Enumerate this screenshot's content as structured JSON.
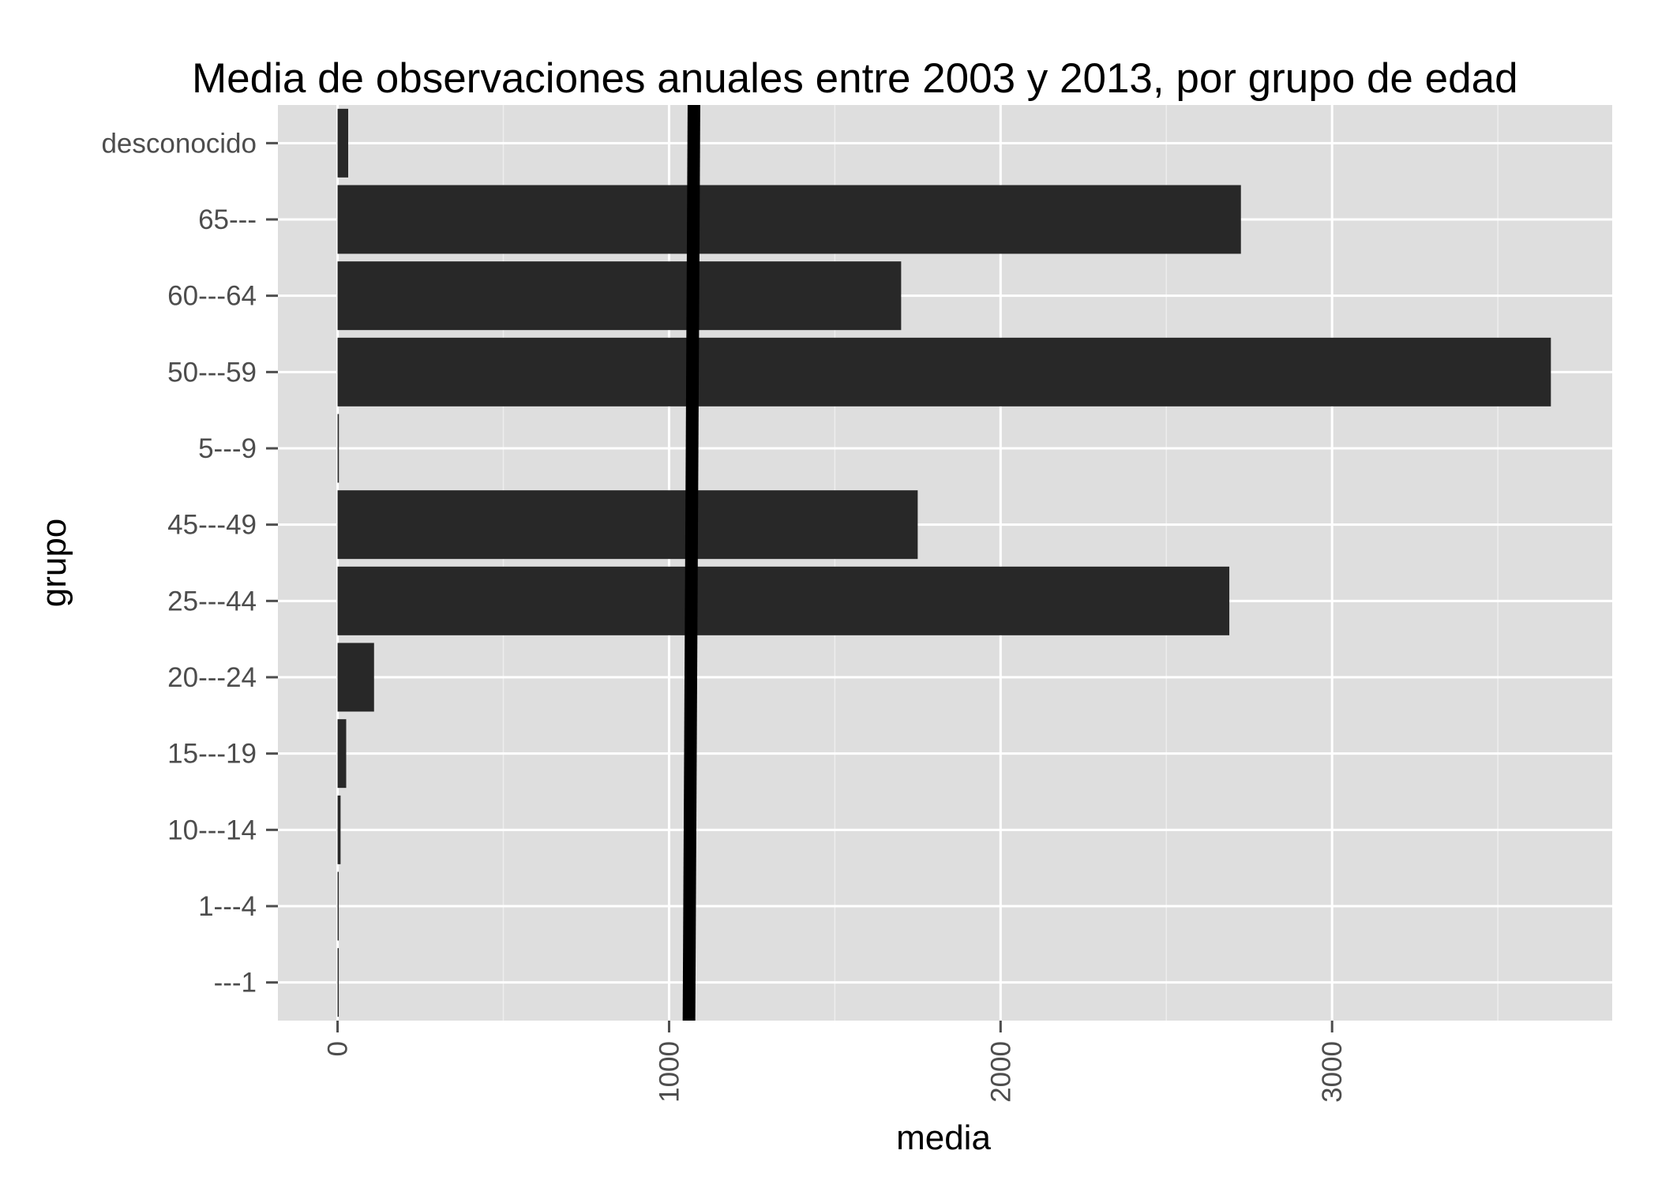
{
  "chart_data": {
    "type": "bar",
    "orientation": "horizontal",
    "title": "Media de observaciones anuales entre 2003 y 2013, por grupo de edad",
    "xlabel": "media",
    "ylabel": "grupo",
    "categories": [
      "---1",
      "1---4",
      "10---14",
      "15---19",
      "20---24",
      "25---44",
      "45---49",
      "5---9",
      "50---59",
      "60---64",
      "65---",
      "desconocido"
    ],
    "values": [
      3,
      3,
      9,
      26,
      110,
      2690,
      1750,
      4,
      3660,
      1700,
      2725,
      32
    ],
    "xlim": [
      -180,
      3845
    ],
    "xticks": [
      0,
      1000,
      2000,
      3000
    ],
    "xtick_labels": [
      "0",
      "1000",
      "2000",
      "3000"
    ],
    "reference_line": {
      "orientation": "vertical",
      "x_bottom": 1060,
      "x_top": 1075,
      "color": "#000000"
    },
    "grid": true,
    "legend": "none",
    "colors": {
      "panel": "#dedede",
      "bar": "#282828",
      "grid_major": "#ffffff",
      "grid_minor": "#ededed",
      "tick_text": "#4d4d4d",
      "reference_line": "#000000"
    }
  }
}
